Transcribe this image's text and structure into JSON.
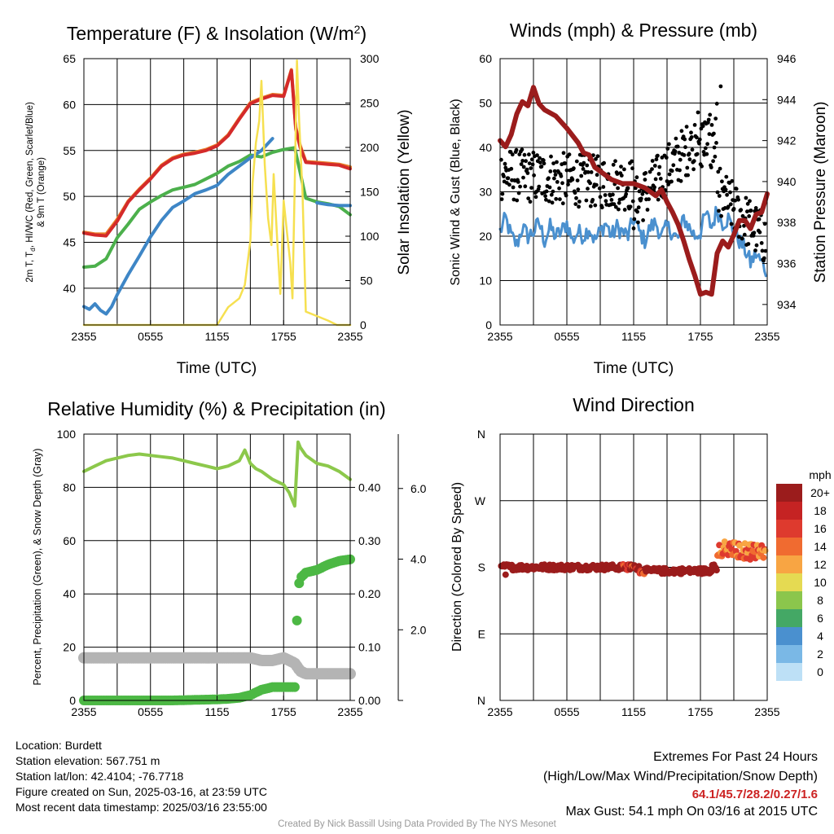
{
  "time_ticks": [
    "2355",
    "0555",
    "1155",
    "1755",
    "2355"
  ],
  "chart_data": [
    {
      "type": "line",
      "title": "Temperature (F) & Insolation (W/m²)",
      "xlabel": "Time (UTC)",
      "ylabel": "2m T, Td, HI/WC (Red, Green, Scarlet/Blue) & 9m T (Orange)",
      "ylabel_parts": [
        "2m T, T",
        "d",
        ", HI/WC (Red, Green, Scarlet/Blue)",
        "& 9m T (Orange)"
      ],
      "y2label": "Solar Insolation (Yellow)",
      "x_ticks": [
        "2355",
        "0555",
        "1155",
        "1755",
        "2355"
      ],
      "xlim": [
        0,
        24
      ],
      "ylim": [
        36,
        65
      ],
      "y_ticks": [
        40,
        45,
        50,
        55,
        60,
        65
      ],
      "y2lim": [
        0,
        300
      ],
      "y2_ticks": [
        0,
        50,
        100,
        150,
        200,
        250,
        300
      ],
      "series": [
        {
          "axis": "left",
          "color": "#e87e27",
          "width": 4,
          "x": [
            0,
            1,
            2,
            3,
            4,
            5,
            6,
            7,
            8,
            9,
            10,
            11,
            12,
            13,
            14,
            15,
            16,
            17,
            18,
            18.7,
            19.1,
            19.5,
            20,
            21,
            22,
            23,
            24
          ],
          "y": [
            46.1,
            45.9,
            45.9,
            47.5,
            49.5,
            50.8,
            52.0,
            53.4,
            54.2,
            54.6,
            54.8,
            55.1,
            55.6,
            56.7,
            58.5,
            60.2,
            60.7,
            61.1,
            61.0,
            63.8,
            57.5,
            55.5,
            53.8,
            53.7,
            53.6,
            53.5,
            53.2
          ]
        },
        {
          "axis": "left",
          "color": "#d42a2a",
          "width": 4,
          "x": [
            0,
            1,
            2,
            3,
            4,
            5,
            6,
            7,
            8,
            9,
            10,
            11,
            12,
            13,
            14,
            15,
            16,
            17,
            18,
            18.7,
            19.1,
            19.5,
            20,
            21,
            22,
            23,
            24
          ],
          "y": [
            46.0,
            45.8,
            45.7,
            47.3,
            49.4,
            50.7,
            51.9,
            53.3,
            54.1,
            54.5,
            54.7,
            55.0,
            55.5,
            56.6,
            58.4,
            60.1,
            60.6,
            61.0,
            60.9,
            63.7,
            57.3,
            55.3,
            53.7,
            53.6,
            53.5,
            53.4,
            53.0
          ]
        },
        {
          "axis": "left",
          "color": "#4cb04c",
          "width": 4,
          "x": [
            0,
            1,
            2,
            3,
            4,
            5,
            6,
            7,
            8,
            9,
            10,
            11,
            12,
            13,
            14,
            15,
            16,
            17,
            18,
            19,
            20,
            21,
            22,
            23,
            24
          ],
          "y": [
            42.3,
            42.4,
            43.2,
            45.5,
            47.0,
            48.6,
            49.4,
            50.1,
            50.7,
            51.0,
            51.3,
            51.9,
            52.5,
            53.3,
            53.8,
            54.5,
            54.3,
            54.8,
            55.1,
            55.3,
            49.8,
            49.4,
            49.2,
            48.9,
            48.0
          ]
        },
        {
          "axis": "left",
          "color": "#3e86c6",
          "width": 4,
          "x": [
            0,
            0.5,
            1,
            1.5,
            2,
            2.5,
            3,
            4,
            5,
            6,
            7,
            8,
            9,
            10,
            11,
            12,
            13,
            14,
            15,
            16,
            17
          ],
          "y": [
            38.0,
            37.7,
            38.3,
            37.6,
            37.2,
            38.0,
            39.3,
            41.5,
            43.5,
            45.6,
            47.4,
            48.8,
            49.5,
            50.3,
            50.7,
            51.2,
            52.4,
            53.3,
            54.2,
            55.0,
            56.3
          ]
        },
        {
          "axis": "left",
          "color": "#3e86c6",
          "width": 4,
          "x": [
            21,
            22,
            23,
            24
          ],
          "y": [
            49.3,
            49.1,
            49.0,
            49.0
          ]
        },
        {
          "axis": "right",
          "color": "#f6e050",
          "width": 2.5,
          "x": [
            0,
            12,
            12.5,
            13,
            13.5,
            14,
            14.5,
            15,
            15.2,
            15.5,
            15.8,
            16,
            16.3,
            16.6,
            16.9,
            17.1,
            17.4,
            17.7,
            18,
            18.3,
            18.6,
            18.8,
            19,
            19.2,
            19.4,
            19.7,
            20,
            21,
            22,
            22.8,
            24
          ],
          "y": [
            0,
            0,
            10,
            20,
            25,
            30,
            45,
            95,
            160,
            205,
            230,
            275,
            180,
            120,
            90,
            170,
            100,
            35,
            140,
            105,
            70,
            30,
            160,
            298,
            230,
            150,
            15,
            10,
            5,
            0,
            0
          ]
        }
      ]
    },
    {
      "type": "line",
      "title": "Winds (mph) & Pressure (mb)",
      "xlabel": "Time (UTC)",
      "ylabel": "Sonic Wind & Gust (Blue, Black)",
      "y2label": "Station Pressure (Maroon)",
      "x_ticks": [
        "2355",
        "0555",
        "1155",
        "1755",
        "2355"
      ],
      "xlim": [
        0,
        24
      ],
      "ylim": [
        0,
        60
      ],
      "y_ticks": [
        0,
        10,
        20,
        30,
        40,
        50,
        60
      ],
      "y2lim": [
        933,
        946
      ],
      "y2_ticks": [
        934,
        936,
        938,
        940,
        942,
        944,
        946
      ],
      "wind": {
        "color": "#4a90cf",
        "x": [
          0,
          0.5,
          1,
          1.5,
          2,
          2.5,
          3,
          3.5,
          4,
          4.5,
          5,
          5.5,
          6,
          6.5,
          7,
          7.5,
          8,
          8.5,
          9,
          9.5,
          10,
          10.5,
          11,
          11.5,
          12,
          12.5,
          13,
          13.5,
          14,
          14.5,
          15,
          15.5,
          16,
          16.5,
          17,
          17.5,
          18,
          18.5,
          19,
          19.5,
          20,
          20.5,
          21,
          21.5,
          22,
          22.5,
          23,
          23.5,
          24
        ],
        "y": [
          21,
          24,
          20,
          18,
          22,
          20,
          21,
          23,
          19,
          22,
          20,
          21,
          23,
          19,
          21,
          20,
          22,
          19,
          21,
          23,
          20,
          22,
          21,
          20,
          24,
          21,
          19,
          22,
          23,
          20,
          22,
          21,
          19,
          24,
          22,
          20,
          21,
          25,
          22,
          26,
          23,
          24,
          21,
          19,
          17,
          14,
          16,
          14,
          12
        ]
      },
      "pressure": {
        "color": "#9b1c1c",
        "x": [
          0,
          0.5,
          1,
          1.5,
          2,
          2.5,
          3,
          3.5,
          4,
          5,
          6,
          7,
          7.5,
          8,
          8.5,
          9,
          10,
          11,
          12,
          13,
          14,
          14.5,
          15,
          15.5,
          16,
          16.5,
          17,
          17.5,
          18,
          18.5,
          19,
          19.5,
          20,
          20.5,
          21,
          21.5,
          22,
          22.5,
          23,
          23.5,
          24
        ],
        "y": [
          942.0,
          941.7,
          942.3,
          943.3,
          943.9,
          943.7,
          944.6,
          943.8,
          943.5,
          943.2,
          942.6,
          941.9,
          941.4,
          941.3,
          940.7,
          940.5,
          940.1,
          939.9,
          939.9,
          939.7,
          939.3,
          939.6,
          939.0,
          938.5,
          937.9,
          937.1,
          936.2,
          935.4,
          934.5,
          934.6,
          934.5,
          936.5,
          937.1,
          936.8,
          937.4,
          938.1,
          938.1,
          937.7,
          938.4,
          938.5,
          939.4
        ]
      },
      "gust_color": "#000000",
      "gust_points": 420,
      "gust_range": [
        13,
        54
      ]
    },
    {
      "type": "line",
      "title": "Relative Humidity (%) & Precipitation (in)",
      "ylabel": "Percent, Precipitation (Green), & Snow Depth (Gray)",
      "x_ticks": [
        "2355",
        "0555",
        "1155",
        "1755",
        "2355"
      ],
      "xlim": [
        0,
        24
      ],
      "ylim": [
        0,
        100
      ],
      "y_ticks": [
        0,
        20,
        40,
        60,
        80,
        100
      ],
      "precip_ticks": [
        "0.00",
        "0.10",
        "0.20",
        "0.30",
        "0.40"
      ],
      "snow_ticks": [
        "2.0",
        "4.0",
        "6.0"
      ],
      "rh": {
        "color": "#8cc84b",
        "x": [
          0,
          1,
          2,
          3,
          4,
          5,
          6,
          7,
          8,
          9,
          10,
          11,
          12,
          13,
          14,
          14.5,
          15,
          15.5,
          16,
          17,
          18,
          18.5,
          19,
          19.3,
          19.5,
          20,
          21,
          22,
          23,
          24
        ],
        "y": [
          86,
          88,
          90,
          91,
          92,
          92.5,
          92,
          91.5,
          91,
          90,
          89,
          88,
          87,
          88,
          90,
          94,
          89,
          87,
          86,
          83,
          81,
          78,
          73,
          97,
          95,
          92,
          89,
          88,
          86,
          83
        ]
      },
      "precip": {
        "color": "#4cb844",
        "x": [
          0,
          2,
          4,
          6,
          8,
          10,
          12,
          13,
          14,
          15,
          15.5,
          16,
          17,
          18,
          19,
          19.2,
          19.3,
          19.5,
          20,
          21,
          22,
          23,
          24
        ],
        "y": [
          0.0,
          0.0,
          0.0,
          0.0,
          0.0,
          0.001,
          0.002,
          0.003,
          0.005,
          0.01,
          0.015,
          0.02,
          0.025,
          0.025,
          0.025,
          0.15,
          0.21,
          0.23,
          0.24,
          0.245,
          0.255,
          0.262,
          0.265
        ]
      },
      "snow": {
        "color": "#b4b4b4",
        "x": [
          0,
          2,
          4,
          6,
          8,
          10,
          12,
          14,
          15,
          16,
          17,
          18,
          18.5,
          19,
          19.5,
          20,
          22,
          24
        ],
        "y": [
          16,
          16,
          16,
          16,
          16,
          16,
          16,
          16,
          16,
          15,
          15,
          16,
          15,
          14,
          11,
          10,
          10,
          10
        ]
      }
    },
    {
      "type": "scatter",
      "title": "Wind Direction",
      "ylabel": "Direction (Colored By Speed)",
      "x_ticks": [
        "2355",
        "0555",
        "1155",
        "1755",
        "2355"
      ],
      "xlim": [
        0,
        24
      ],
      "y_ticks": [
        "N",
        "E",
        "S",
        "W",
        "N"
      ],
      "ylim_deg": [
        0,
        360
      ],
      "legend_title": "mph",
      "legend_labels": [
        "20+",
        "18",
        "16",
        "14",
        "12",
        "10",
        "8",
        "6",
        "4",
        "2",
        "0"
      ],
      "legend_colors": [
        "#9b1c1c",
        "#c52323",
        "#de3a2e",
        "#f06b30",
        "#f8a543",
        "#e5da52",
        "#8bc64c",
        "#44a865",
        "#4a90cf",
        "#7ab8e6",
        "#bde0f6"
      ],
      "dir_points": 300
    }
  ],
  "info": {
    "location": "Location: Burdett",
    "elevation": "Station elevation: 567.751 m",
    "latlon": "Station lat/lon: 42.4104; -76.7718",
    "created": "Figure created on Sun, 2025-03-16, at 23:59 UTC",
    "recent": "Most recent data timestamp: 2025/03/16 23:55:00"
  },
  "extremes": {
    "heading": "Extremes For Past 24 Hours",
    "subheading": "(High/Low/Max Wind/Precipitation/Snow Depth)",
    "values": "64.1/45.7/28.2/0.27/1.6",
    "max_gust": "Max Gust: 54.1 mph On 03/16 at 2015 UTC"
  },
  "credit": "Created By Nick Bassill Using Data Provided By The NYS Mesonet"
}
